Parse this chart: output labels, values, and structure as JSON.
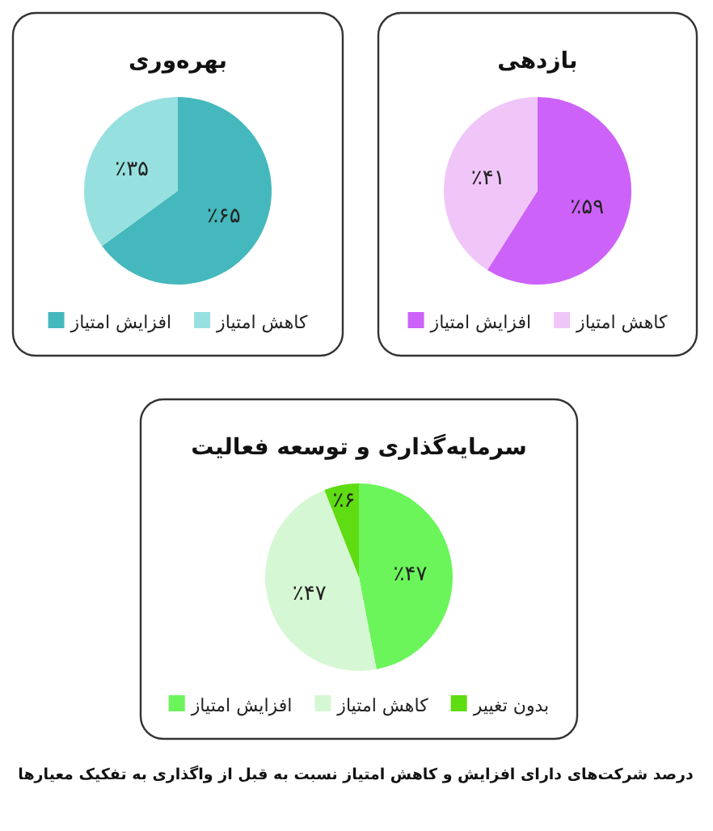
{
  "chart_data": [
    {
      "type": "pie",
      "title": "بهره‌وری",
      "categories": [
        "افزایش امتیاز",
        "کاهش امتیاز"
      ],
      "values": [
        65,
        35
      ],
      "colors": [
        "#45b8bd",
        "#97e0e0"
      ],
      "value_labels": [
        "٪۶۵",
        "٪۳۵"
      ],
      "legend": "bottom"
    },
    {
      "type": "pie",
      "title": "بازدهی",
      "categories": [
        "افزایش امتیاز",
        "کاهش امتیاز"
      ],
      "values": [
        59,
        41
      ],
      "colors": [
        "#cd62f9",
        "#f0c6f9"
      ],
      "value_labels": [
        "٪۵۹",
        "٪۴۱"
      ],
      "legend": "bottom"
    },
    {
      "type": "pie",
      "title": "سرمایه‌گذاری و توسعه فعالیت",
      "categories": [
        "افزایش امتیاز",
        "کاهش امتیاز",
        "بدون تغییر"
      ],
      "values": [
        47,
        47,
        6
      ],
      "colors": [
        "#6bf55b",
        "#d6f7d3",
        "#5fdc12"
      ],
      "value_labels": [
        "٪۴۷",
        "٪۴۷",
        "٪۶"
      ],
      "legend": "bottom",
      "annotations": [
        "درصد شرکت‌های دارای افزایش و کاهش امتیاز نسبت به قبل از واگذاری به تفکیک معیارها"
      ]
    }
  ]
}
